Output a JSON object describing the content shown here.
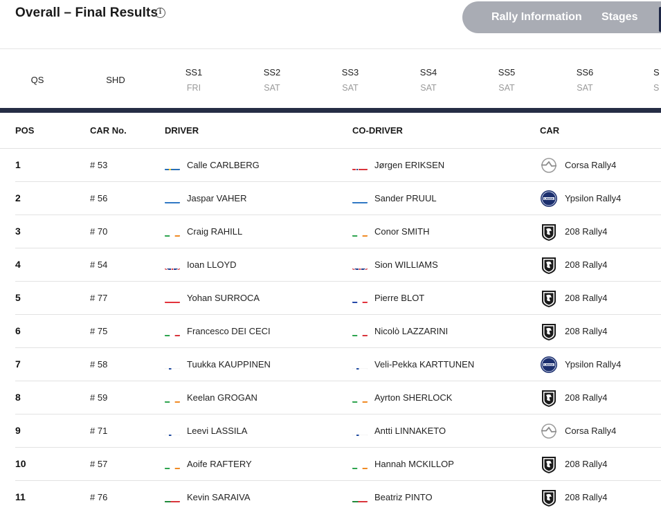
{
  "header": {
    "title": "Overall – Final Results",
    "info_icon": "info-icon"
  },
  "nav": {
    "rally_information": "Rally Information",
    "stages": "Stages"
  },
  "stage_columns": [
    {
      "label": "QS",
      "day": ""
    },
    {
      "label": "SHD",
      "day": ""
    },
    {
      "label": "SS1",
      "day": "FRI"
    },
    {
      "label": "SS2",
      "day": "SAT"
    },
    {
      "label": "SS3",
      "day": "SAT"
    },
    {
      "label": "SS4",
      "day": "SAT"
    },
    {
      "label": "SS5",
      "day": "SAT"
    },
    {
      "label": "SS6",
      "day": "SAT"
    }
  ],
  "table": {
    "headers": {
      "pos": "POS",
      "car_no": "CAR No.",
      "driver": "DRIVER",
      "co_driver": "CO-DRIVER",
      "car": "CAR"
    },
    "rows": [
      {
        "pos": "1",
        "car_no": "# 53",
        "driver": "Calle CARLBERG",
        "driver_flag": "SE",
        "co_driver": "Jørgen ERIKSEN",
        "co_flag": "NO",
        "brand": "opel",
        "car": "Corsa Rally4"
      },
      {
        "pos": "2",
        "car_no": "# 56",
        "driver": "Jaspar VAHER",
        "driver_flag": "EE",
        "co_driver": "Sander PRUUL",
        "co_flag": "EE",
        "brand": "lancia",
        "car": "Ypsilon Rally4"
      },
      {
        "pos": "3",
        "car_no": "# 70",
        "driver": "Craig RAHILL",
        "driver_flag": "IE",
        "co_driver": "Conor SMITH",
        "co_flag": "IE",
        "brand": "peugeot",
        "car": "208 Rally4"
      },
      {
        "pos": "4",
        "car_no": "# 54",
        "driver": "Ioan LLOYD",
        "driver_flag": "GB",
        "co_driver": "Sion WILLIAMS",
        "co_flag": "GB",
        "brand": "peugeot",
        "car": "208 Rally4"
      },
      {
        "pos": "5",
        "car_no": "# 77",
        "driver": "Yohan SURROCA",
        "driver_flag": "CH",
        "co_driver": "Pierre BLOT",
        "co_flag": "FR",
        "brand": "peugeot",
        "car": "208 Rally4"
      },
      {
        "pos": "6",
        "car_no": "# 75",
        "driver": "Francesco DEI CECI",
        "driver_flag": "IT",
        "co_driver": "Nicolò LAZZARINI",
        "co_flag": "IT",
        "brand": "peugeot",
        "car": "208 Rally4"
      },
      {
        "pos": "7",
        "car_no": "# 58",
        "driver": "Tuukka KAUPPINEN",
        "driver_flag": "FI",
        "co_driver": "Veli-Pekka KARTTUNEN",
        "co_flag": "FI",
        "brand": "lancia",
        "car": "Ypsilon Rally4"
      },
      {
        "pos": "8",
        "car_no": "# 59",
        "driver": "Keelan GROGAN",
        "driver_flag": "IE",
        "co_driver": "Ayrton SHERLOCK",
        "co_flag": "IE",
        "brand": "peugeot",
        "car": "208 Rally4"
      },
      {
        "pos": "9",
        "car_no": "# 71",
        "driver": "Leevi LASSILA",
        "driver_flag": "FI",
        "co_driver": "Antti LINNAKETO",
        "co_flag": "FI",
        "brand": "opel",
        "car": "Corsa Rally4"
      },
      {
        "pos": "10",
        "car_no": "# 57",
        "driver": "Aoife RAFTERY",
        "driver_flag": "IE",
        "co_driver": "Hannah MCKILLOP",
        "co_flag": "IE",
        "brand": "peugeot",
        "car": "208 Rally4"
      },
      {
        "pos": "11",
        "car_no": "# 76",
        "driver": "Kevin SARAIVA",
        "driver_flag": "PT",
        "co_driver": "Beatriz PINTO",
        "co_flag": "PT",
        "brand": "peugeot",
        "car": "208 Rally4"
      }
    ]
  },
  "colors": {
    "navy": "#262d45",
    "nav_pill": "#a9acb4"
  }
}
